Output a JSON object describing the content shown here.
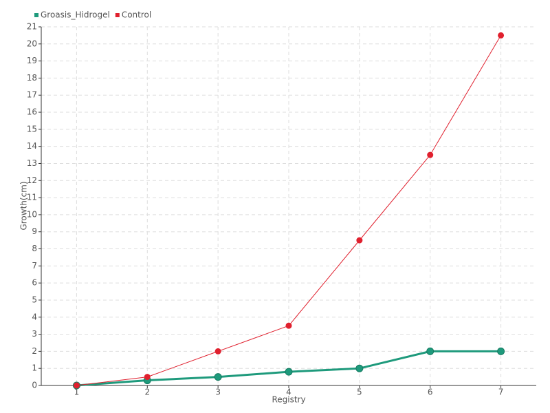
{
  "chart_data": {
    "type": "line",
    "x": [
      1,
      2,
      3,
      4,
      5,
      6,
      7
    ],
    "xlim": [
      0.5,
      7.5
    ],
    "xticks": [
      1,
      2,
      3,
      4,
      5,
      6,
      7
    ],
    "ylim": [
      0,
      21
    ],
    "yticks": [
      0,
      1,
      2,
      3,
      4,
      5,
      6,
      7,
      8,
      9,
      10,
      11,
      12,
      13,
      14,
      15,
      16,
      17,
      18,
      19,
      20,
      21
    ],
    "x_label": "Registry",
    "y_label": "Growth(cm)",
    "grid": true,
    "legend": "top-left",
    "series": [
      {
        "name": "Groasis_Hidrogel",
        "color": "#1e9a7c",
        "values": [
          0,
          0.3,
          0.5,
          0.8,
          1,
          2,
          2
        ]
      },
      {
        "name": "Control",
        "color": "#e0202e",
        "values": [
          0,
          0.5,
          2,
          3.5,
          8.5,
          13.5,
          20.5
        ]
      }
    ]
  }
}
